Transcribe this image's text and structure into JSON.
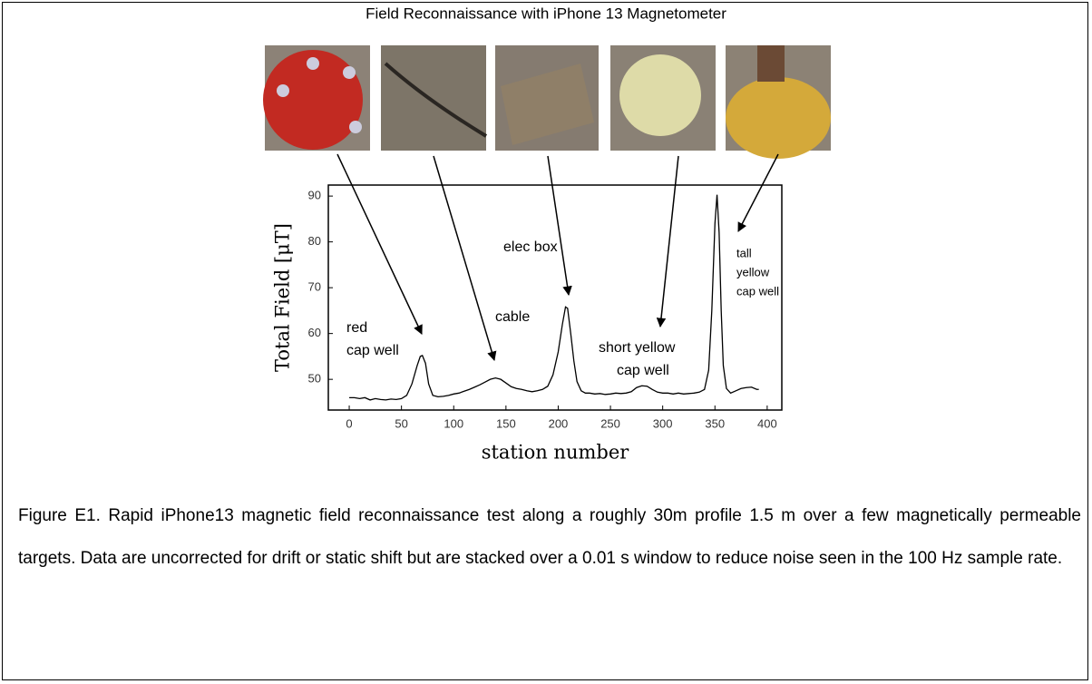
{
  "chart_data": {
    "type": "line",
    "title": "Field Reconnaissance with iPhone 13 Magnetometer",
    "x_label": "station number",
    "y_label": "Total Field [μT]",
    "color": "#000000",
    "x": [
      0,
      5,
      10,
      15,
      20,
      25,
      30,
      35,
      40,
      45,
      50,
      55,
      60,
      65,
      68,
      70,
      73,
      76,
      80,
      85,
      90,
      95,
      100,
      105,
      110,
      115,
      120,
      125,
      130,
      135,
      140,
      145,
      150,
      155,
      160,
      165,
      170,
      175,
      180,
      185,
      190,
      195,
      200,
      204,
      207,
      209,
      212,
      215,
      218,
      222,
      226,
      230,
      235,
      240,
      245,
      250,
      255,
      260,
      265,
      270,
      275,
      280,
      285,
      290,
      295,
      300,
      305,
      310,
      315,
      320,
      325,
      330,
      335,
      340,
      344,
      347,
      350,
      352,
      354,
      356,
      358,
      361,
      365,
      370,
      375,
      380,
      385,
      390,
      392
    ],
    "values": [
      46,
      46,
      45.8,
      46,
      45.5,
      45.8,
      45.6,
      45.5,
      45.7,
      45.6,
      45.8,
      46.5,
      49,
      53,
      55,
      55.2,
      53.5,
      49,
      46.5,
      46.2,
      46.3,
      46.5,
      46.8,
      47,
      47.4,
      47.8,
      48.3,
      48.8,
      49.4,
      50,
      50.3,
      50,
      49.2,
      48.4,
      48,
      47.8,
      47.5,
      47.3,
      47.5,
      47.8,
      48.5,
      51,
      56,
      62,
      65.8,
      65.5,
      60,
      54,
      49.5,
      47.5,
      47,
      47,
      46.8,
      46.9,
      46.7,
      46.8,
      47,
      46.9,
      47,
      47.3,
      48.2,
      48.6,
      48.5,
      47.8,
      47.2,
      47,
      47,
      46.8,
      47,
      46.8,
      46.9,
      47,
      47.2,
      47.8,
      52,
      65,
      84,
      90.3,
      82,
      65,
      53,
      48,
      47,
      47.5,
      48,
      48.2,
      48.3,
      47.8,
      47.8
    ],
    "xlim": [
      -20,
      414
    ],
    "ylim": [
      43.3,
      92.4
    ],
    "xticks": [
      0,
      50,
      100,
      150,
      200,
      250,
      300,
      350,
      400
    ],
    "yticks": [
      50,
      60,
      70,
      80,
      90
    ],
    "annotations": [
      {
        "lines": [
          "red",
          "cap well"
        ]
      },
      {
        "lines": [
          "cable"
        ]
      },
      {
        "lines": [
          "elec box"
        ]
      },
      {
        "lines": [
          "short yellow",
          "cap well"
        ]
      },
      {
        "lines": [
          "tall",
          "yellow",
          "cap well"
        ]
      }
    ]
  },
  "caption": "Figure E1. Rapid iPhone13 magnetic field reconnaissance test along a roughly 30m profile 1.5 m over a few magnetically permeable targets.  Data are uncorrected for drift or static shift but are stacked over a 0.01 s window to reduce noise seen in the 100 Hz sample rate."
}
